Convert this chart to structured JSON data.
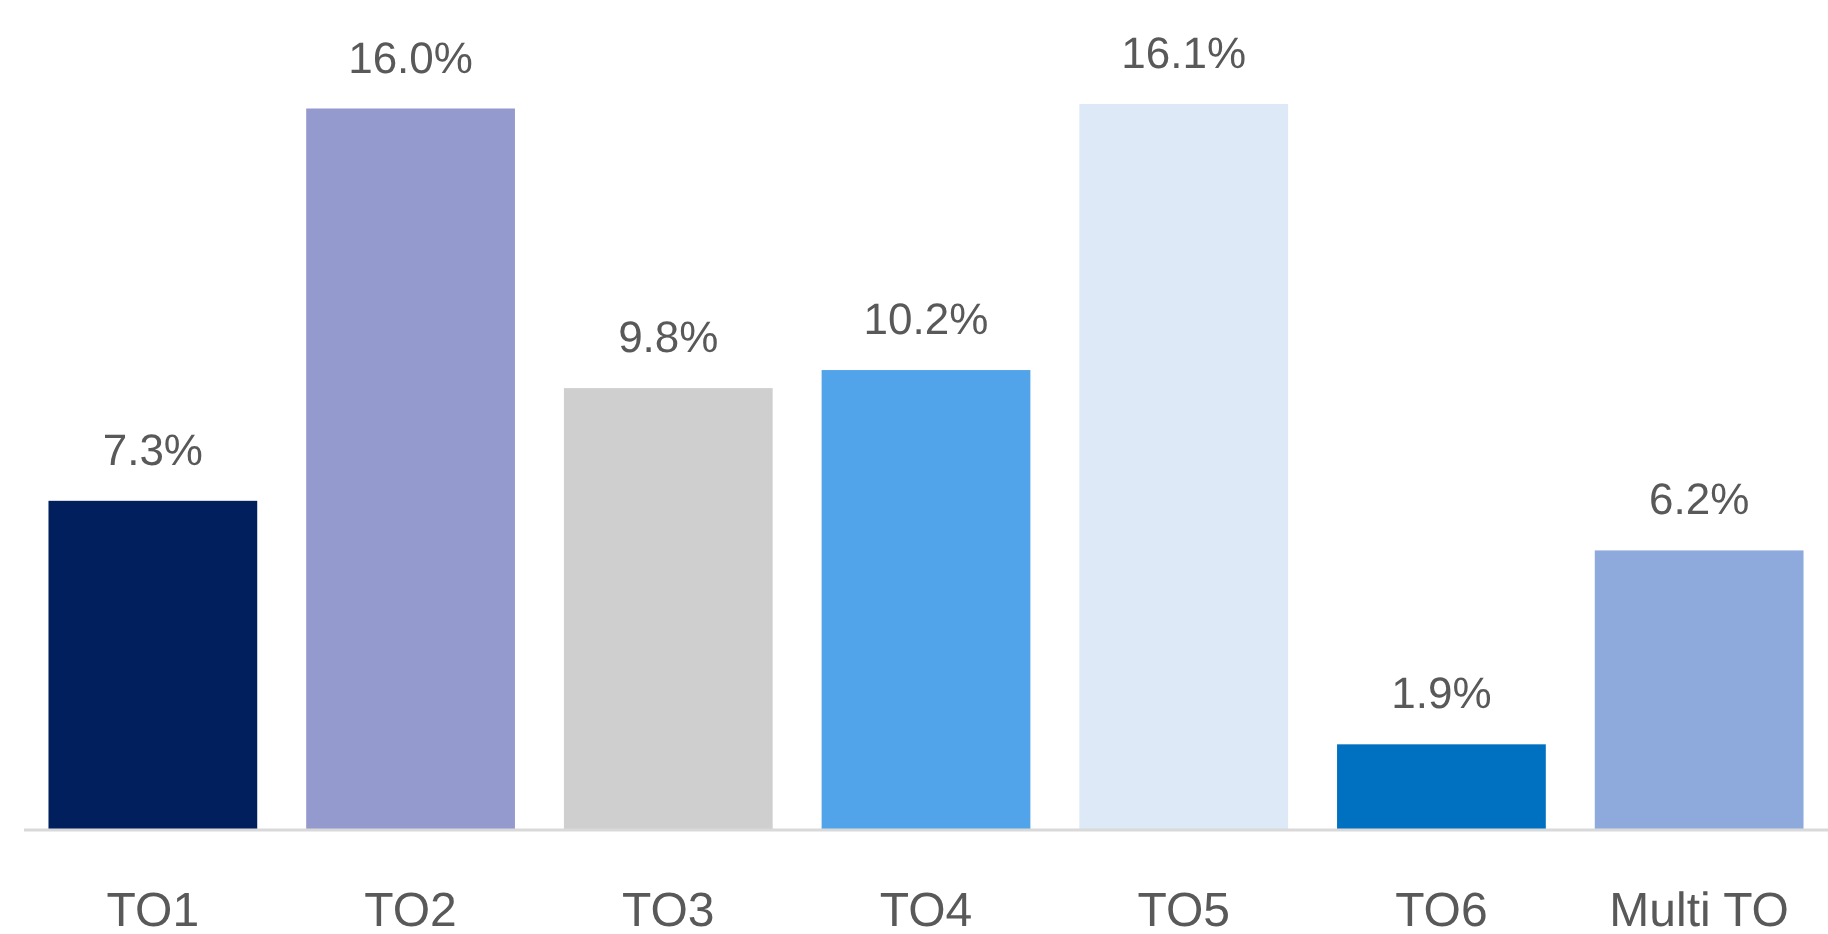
{
  "chart_data": {
    "type": "bar",
    "categories": [
      "TO1",
      "TO2",
      "TO3",
      "TO4",
      "TO5",
      "TO6",
      "Multi TO"
    ],
    "values": [
      7.3,
      16.0,
      9.8,
      10.2,
      16.1,
      1.9,
      6.2
    ],
    "colors": [
      "#001f5c",
      "#9499ce",
      "#d0cfcf",
      "#51a4ea",
      "#dde9f6",
      "#0070c0",
      "#8eaadc"
    ],
    "value_labels": [
      "7.3%",
      "16.0%",
      "9.8%",
      "10.2%",
      "16.1%",
      "1.9%",
      "6.2%"
    ]
  }
}
